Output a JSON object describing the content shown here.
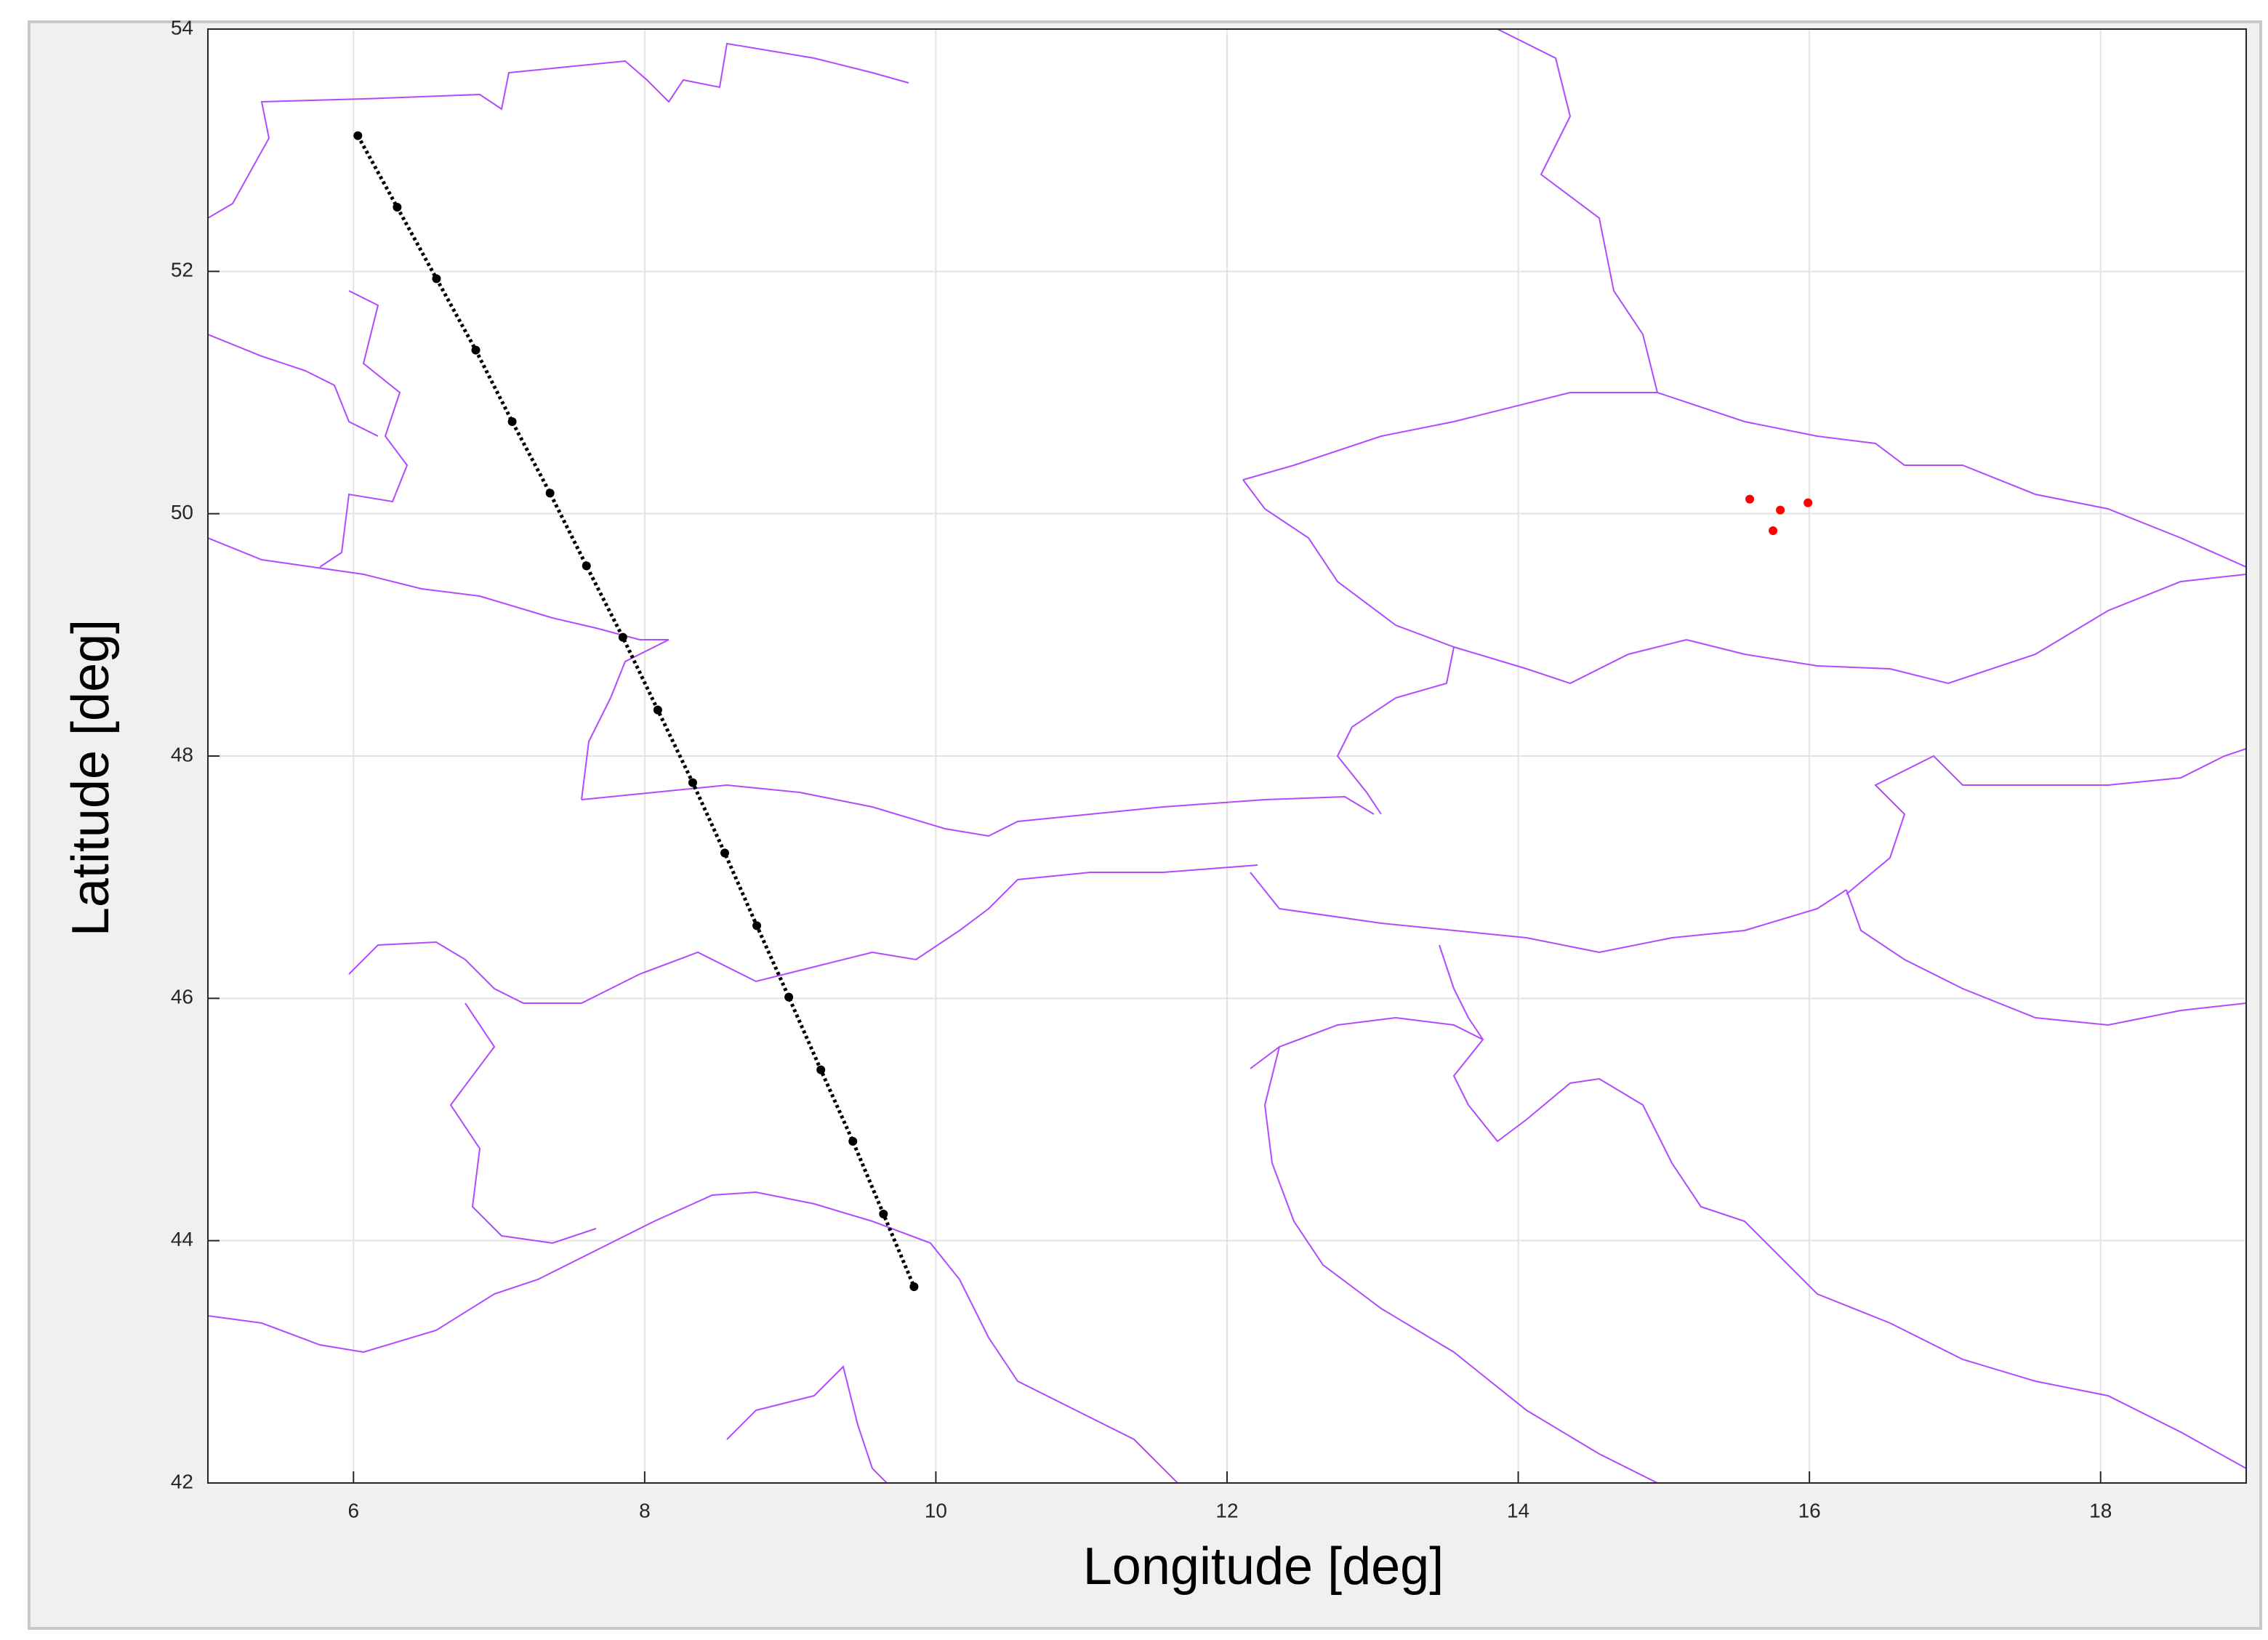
{
  "chart_data": {
    "type": "scatter",
    "xlabel": "Longitude [deg]",
    "ylabel": "Latitude [deg]",
    "xlim": [
      5,
      19
    ],
    "ylim": [
      42,
      54
    ],
    "xticks": [
      6,
      8,
      10,
      12,
      14,
      16,
      18
    ],
    "yticks": [
      42,
      44,
      46,
      48,
      50,
      52,
      54
    ],
    "grid": true,
    "series": [
      {
        "color": "#000000",
        "line": "dotted",
        "x": [
          6.03,
          6.3,
          6.57,
          6.84,
          7.09,
          7.35,
          7.6,
          7.85,
          8.09,
          8.33,
          8.55,
          8.77,
          8.99,
          9.21,
          9.43,
          9.64,
          9.85
        ],
        "values": [
          53.12,
          52.53,
          51.94,
          51.35,
          50.76,
          50.17,
          49.57,
          48.98,
          48.38,
          47.78,
          47.2,
          46.6,
          46.01,
          45.41,
          44.82,
          44.22,
          43.62
        ]
      },
      {
        "color": "#ff0000",
        "x": [
          15.59,
          15.8,
          15.99,
          15.75
        ],
        "values": [
          50.12,
          50.03,
          50.09,
          49.86
        ]
      }
    ]
  }
}
